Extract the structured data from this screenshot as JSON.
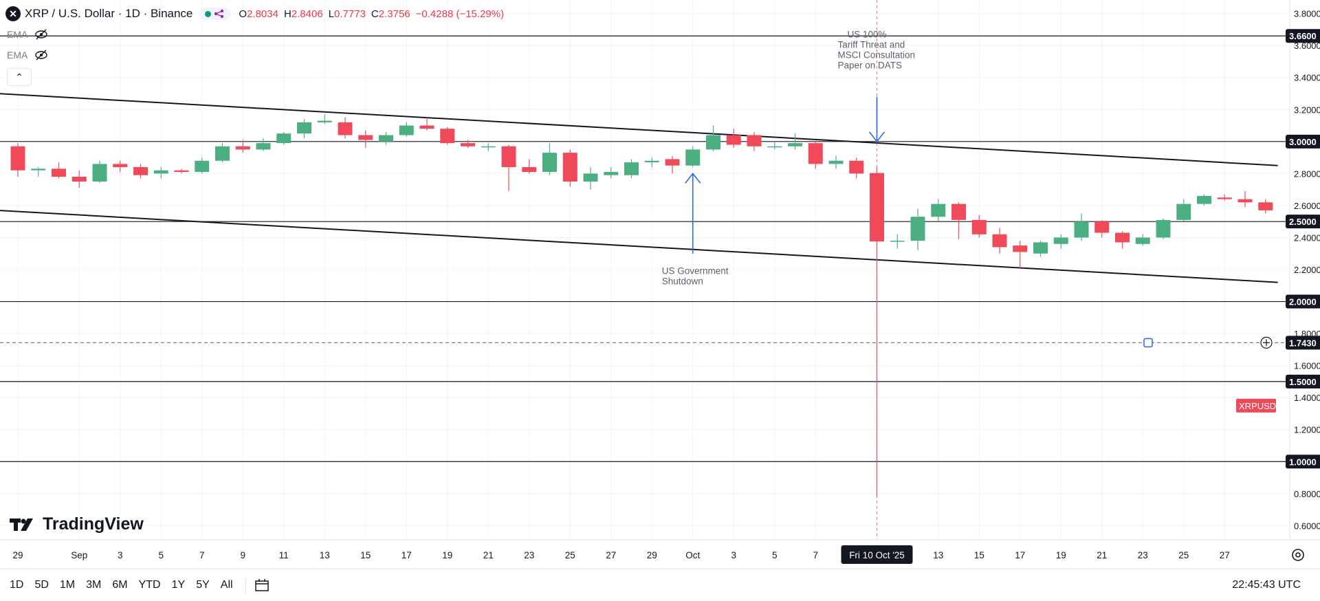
{
  "header": {
    "symbol_icon": "x-circle-icon",
    "title": "XRP / U.S. Dollar · 1D · Binance",
    "ohlc": {
      "o_label": "O",
      "o": "2.8034",
      "h_label": "H",
      "h": "2.8406",
      "l_label": "L",
      "l": "0.7773",
      "c_label": "C",
      "c": "2.3756",
      "change": "−0.4288 (−15.29%)"
    }
  },
  "indicators": [
    {
      "label": "EMA",
      "icon": "eye-off-icon"
    },
    {
      "label": "EMA",
      "icon": "eye-off-icon"
    }
  ],
  "branding": {
    "name": "TradingView"
  },
  "range_buttons": [
    "1D",
    "5D",
    "1M",
    "3M",
    "6M",
    "YTD",
    "1Y",
    "5Y",
    "All"
  ],
  "clock": "22:45:43 UTC",
  "colors": {
    "up": "#4caf82",
    "down": "#f0495a",
    "accent": "#2962ff",
    "text": "#131722"
  },
  "chart_data": {
    "type": "candlestick",
    "symbol": "XRPUSD",
    "y_axis": {
      "min": 0.55,
      "max": 3.85,
      "ticks": [
        "3.8000",
        "3.6000",
        "3.4000",
        "3.2000",
        "3.0000",
        "2.8000",
        "2.6000",
        "2.4000",
        "2.2000",
        "2.0000",
        "1.8000",
        "1.6000",
        "1.4000",
        "1.2000",
        "1.0000",
        "0.8000",
        "0.6000"
      ]
    },
    "x_axis": {
      "labels": [
        {
          "i": 0,
          "t": "29"
        },
        {
          "i": 3,
          "t": "Sep"
        },
        {
          "i": 5,
          "t": "3"
        },
        {
          "i": 7,
          "t": "5"
        },
        {
          "i": 9,
          "t": "7"
        },
        {
          "i": 11,
          "t": "9"
        },
        {
          "i": 13,
          "t": "11"
        },
        {
          "i": 15,
          "t": "13"
        },
        {
          "i": 17,
          "t": "15"
        },
        {
          "i": 19,
          "t": "17"
        },
        {
          "i": 21,
          "t": "19"
        },
        {
          "i": 23,
          "t": "21"
        },
        {
          "i": 25,
          "t": "23"
        },
        {
          "i": 27,
          "t": "25"
        },
        {
          "i": 29,
          "t": "27"
        },
        {
          "i": 31,
          "t": "29"
        },
        {
          "i": 33,
          "t": "Oct"
        },
        {
          "i": 35,
          "t": "3"
        },
        {
          "i": 37,
          "t": "5"
        },
        {
          "i": 39,
          "t": "7"
        },
        {
          "i": 45,
          "t": "13"
        },
        {
          "i": 47,
          "t": "15"
        },
        {
          "i": 49,
          "t": "17"
        },
        {
          "i": 51,
          "t": "19"
        },
        {
          "i": 53,
          "t": "21"
        },
        {
          "i": 55,
          "t": "23"
        },
        {
          "i": 57,
          "t": "25"
        },
        {
          "i": 59,
          "t": "27"
        }
      ],
      "crosshair": {
        "i": 42,
        "label": "Fri 10 Oct '25"
      }
    },
    "candles": [
      {
        "date": "2025-08-29",
        "o": 2.97,
        "h": 2.99,
        "l": 2.78,
        "c": 2.82
      },
      {
        "date": "2025-08-30",
        "o": 2.82,
        "h": 2.84,
        "l": 2.78,
        "c": 2.83
      },
      {
        "date": "2025-08-31",
        "o": 2.83,
        "h": 2.87,
        "l": 2.77,
        "c": 2.78
      },
      {
        "date": "2025-09-01",
        "o": 2.78,
        "h": 2.82,
        "l": 2.71,
        "c": 2.75
      },
      {
        "date": "2025-09-02",
        "o": 2.75,
        "h": 2.88,
        "l": 2.74,
        "c": 2.86
      },
      {
        "date": "2025-09-03",
        "o": 2.86,
        "h": 2.88,
        "l": 2.81,
        "c": 2.84
      },
      {
        "date": "2025-09-04",
        "o": 2.84,
        "h": 2.86,
        "l": 2.77,
        "c": 2.79
      },
      {
        "date": "2025-09-05",
        "o": 2.8,
        "h": 2.84,
        "l": 2.77,
        "c": 2.82
      },
      {
        "date": "2025-09-06",
        "o": 2.82,
        "h": 2.83,
        "l": 2.8,
        "c": 2.81
      },
      {
        "date": "2025-09-07",
        "o": 2.81,
        "h": 2.9,
        "l": 2.8,
        "c": 2.88
      },
      {
        "date": "2025-09-08",
        "o": 2.88,
        "h": 2.99,
        "l": 2.87,
        "c": 2.97
      },
      {
        "date": "2025-09-09",
        "o": 2.97,
        "h": 3.01,
        "l": 2.93,
        "c": 2.95
      },
      {
        "date": "2025-09-10",
        "o": 2.95,
        "h": 3.02,
        "l": 2.94,
        "c": 2.99
      },
      {
        "date": "2025-09-11",
        "o": 2.99,
        "h": 3.06,
        "l": 2.98,
        "c": 3.05
      },
      {
        "date": "2025-09-12",
        "o": 3.05,
        "h": 3.14,
        "l": 3.02,
        "c": 3.12
      },
      {
        "date": "2025-09-13",
        "o": 3.12,
        "h": 3.17,
        "l": 3.11,
        "c": 3.13
      },
      {
        "date": "2025-09-14",
        "o": 3.12,
        "h": 3.15,
        "l": 3.02,
        "c": 3.04
      },
      {
        "date": "2025-09-15",
        "o": 3.04,
        "h": 3.07,
        "l": 2.96,
        "c": 3.01
      },
      {
        "date": "2025-09-16",
        "o": 3.0,
        "h": 3.06,
        "l": 2.98,
        "c": 3.04
      },
      {
        "date": "2025-09-17",
        "o": 3.04,
        "h": 3.12,
        "l": 3.03,
        "c": 3.1
      },
      {
        "date": "2025-09-18",
        "o": 3.1,
        "h": 3.15,
        "l": 3.07,
        "c": 3.08
      },
      {
        "date": "2025-09-19",
        "o": 3.08,
        "h": 3.09,
        "l": 2.98,
        "c": 2.99
      },
      {
        "date": "2025-09-20",
        "o": 2.99,
        "h": 3.01,
        "l": 2.96,
        "c": 2.97
      },
      {
        "date": "2025-09-21",
        "o": 2.97,
        "h": 2.99,
        "l": 2.94,
        "c": 2.97
      },
      {
        "date": "2025-09-22",
        "o": 2.97,
        "h": 2.98,
        "l": 2.69,
        "c": 2.84
      },
      {
        "date": "2025-09-23",
        "o": 2.84,
        "h": 2.89,
        "l": 2.8,
        "c": 2.81
      },
      {
        "date": "2025-09-24",
        "o": 2.81,
        "h": 2.99,
        "l": 2.79,
        "c": 2.93
      },
      {
        "date": "2025-09-25",
        "o": 2.93,
        "h": 2.95,
        "l": 2.72,
        "c": 2.75
      },
      {
        "date": "2025-09-26",
        "o": 2.75,
        "h": 2.84,
        "l": 2.7,
        "c": 2.8
      },
      {
        "date": "2025-09-27",
        "o": 2.79,
        "h": 2.84,
        "l": 2.77,
        "c": 2.81
      },
      {
        "date": "2025-09-28",
        "o": 2.79,
        "h": 2.89,
        "l": 2.77,
        "c": 2.87
      },
      {
        "date": "2025-09-29",
        "o": 2.87,
        "h": 2.9,
        "l": 2.84,
        "c": 2.88
      },
      {
        "date": "2025-09-30",
        "o": 2.89,
        "h": 2.91,
        "l": 2.8,
        "c": 2.85
      },
      {
        "date": "2025-10-01",
        "o": 2.85,
        "h": 2.97,
        "l": 2.84,
        "c": 2.95
      },
      {
        "date": "2025-10-02",
        "o": 2.95,
        "h": 3.1,
        "l": 2.94,
        "c": 3.04
      },
      {
        "date": "2025-10-03",
        "o": 3.04,
        "h": 3.08,
        "l": 2.96,
        "c": 2.98
      },
      {
        "date": "2025-10-04",
        "o": 3.04,
        "h": 3.06,
        "l": 2.94,
        "c": 2.97
      },
      {
        "date": "2025-10-05",
        "o": 2.97,
        "h": 3.0,
        "l": 2.95,
        "c": 2.97
      },
      {
        "date": "2025-10-06",
        "o": 2.97,
        "h": 3.05,
        "l": 2.95,
        "c": 2.99
      },
      {
        "date": "2025-10-07",
        "o": 2.99,
        "h": 3.0,
        "l": 2.83,
        "c": 2.86
      },
      {
        "date": "2025-10-08",
        "o": 2.86,
        "h": 2.91,
        "l": 2.83,
        "c": 2.88
      },
      {
        "date": "2025-10-09",
        "o": 2.88,
        "h": 2.9,
        "l": 2.77,
        "c": 2.8
      },
      {
        "date": "2025-10-10",
        "o": 2.8034,
        "h": 2.8406,
        "l": 0.7773,
        "c": 2.3756
      },
      {
        "date": "2025-10-11",
        "o": 2.38,
        "h": 2.42,
        "l": 2.33,
        "c": 2.38
      },
      {
        "date": "2025-10-12",
        "o": 2.38,
        "h": 2.58,
        "l": 2.32,
        "c": 2.53
      },
      {
        "date": "2025-10-13",
        "o": 2.53,
        "h": 2.64,
        "l": 2.5,
        "c": 2.61
      },
      {
        "date": "2025-10-14",
        "o": 2.61,
        "h": 2.62,
        "l": 2.39,
        "c": 2.51
      },
      {
        "date": "2025-10-15",
        "o": 2.51,
        "h": 2.54,
        "l": 2.4,
        "c": 2.42
      },
      {
        "date": "2025-10-16",
        "o": 2.42,
        "h": 2.46,
        "l": 2.3,
        "c": 2.34
      },
      {
        "date": "2025-10-17",
        "o": 2.35,
        "h": 2.38,
        "l": 2.21,
        "c": 2.31
      },
      {
        "date": "2025-10-18",
        "o": 2.3,
        "h": 2.38,
        "l": 2.28,
        "c": 2.37
      },
      {
        "date": "2025-10-19",
        "o": 2.36,
        "h": 2.42,
        "l": 2.33,
        "c": 2.4
      },
      {
        "date": "2025-10-20",
        "o": 2.4,
        "h": 2.55,
        "l": 2.38,
        "c": 2.5
      },
      {
        "date": "2025-10-21",
        "o": 2.5,
        "h": 2.51,
        "l": 2.4,
        "c": 2.43
      },
      {
        "date": "2025-10-22",
        "o": 2.43,
        "h": 2.44,
        "l": 2.33,
        "c": 2.37
      },
      {
        "date": "2025-10-23",
        "o": 2.36,
        "h": 2.42,
        "l": 2.35,
        "c": 2.4
      },
      {
        "date": "2025-10-24",
        "o": 2.4,
        "h": 2.52,
        "l": 2.39,
        "c": 2.51
      },
      {
        "date": "2025-10-25",
        "o": 2.51,
        "h": 2.64,
        "l": 2.5,
        "c": 2.61
      },
      {
        "date": "2025-10-26",
        "o": 2.61,
        "h": 2.67,
        "l": 2.6,
        "c": 2.66
      },
      {
        "date": "2025-10-27",
        "o": 2.65,
        "h": 2.67,
        "l": 2.63,
        "c": 2.64
      },
      {
        "date": "2025-10-28",
        "o": 2.64,
        "h": 2.69,
        "l": 2.59,
        "c": 2.62
      },
      {
        "date": "2025-10-29",
        "o": 2.62,
        "h": 2.64,
        "l": 2.55,
        "c": 2.57
      }
    ],
    "horizontal_levels": [
      {
        "price": 3.66,
        "label": "3.6600",
        "style": "solid"
      },
      {
        "price": 3.0,
        "label": "3.0000",
        "style": "solid"
      },
      {
        "price": 2.5,
        "label": "2.5000",
        "style": "solid"
      },
      {
        "price": 2.0,
        "label": "2.0000",
        "style": "solid"
      },
      {
        "price": 1.5,
        "label": "1.5000",
        "style": "solid"
      },
      {
        "price": 1.0,
        "label": "1.0000",
        "style": "solid"
      },
      {
        "price": 1.743,
        "label": "1.7430",
        "style": "dashed"
      }
    ],
    "trendlines": [
      {
        "from": {
          "i": -1,
          "p": 3.3
        },
        "to": {
          "i": 61.6,
          "p": 2.85
        }
      },
      {
        "from": {
          "i": -1,
          "p": 2.57
        },
        "to": {
          "i": 61.6,
          "p": 2.12
        }
      }
    ],
    "annotations": [
      {
        "lines": [
          "US 100%",
          "Tariff Threat and",
          "MSCI Consultation",
          "Paper on DATS"
        ],
        "arrow": "down",
        "at_i": 42,
        "arrow_from": 3.28,
        "arrow_to": 3.0
      },
      {
        "lines": [
          "US Government",
          "Shutdown"
        ],
        "arrow": "up",
        "at_i": 33,
        "arrow_from": 2.3,
        "arrow_to": 2.8
      }
    ],
    "price_tag": {
      "text": "XRPUSD",
      "price": 1.35
    }
  }
}
